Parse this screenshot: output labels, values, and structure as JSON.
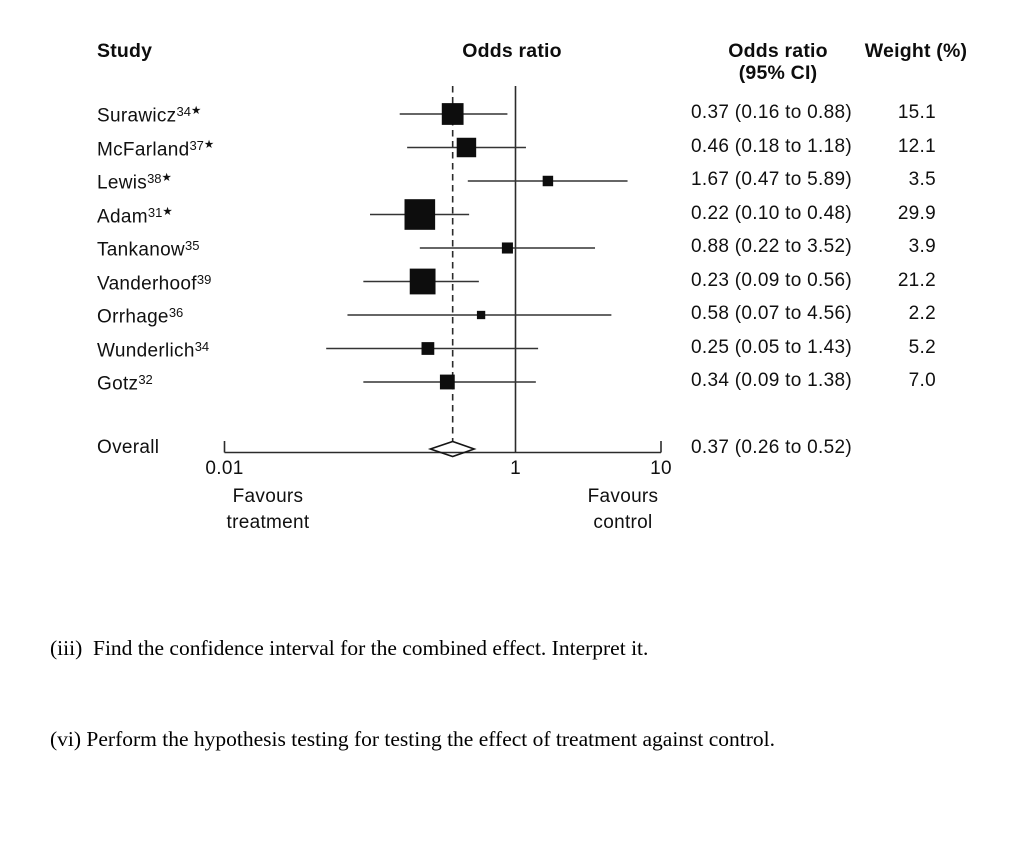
{
  "figure": {
    "headers": {
      "study": "Study",
      "odds_ratio": "Odds ratio",
      "odds_ratio_ci_line1": "Odds ratio",
      "odds_ratio_ci_line2": "(95% CI)",
      "weight": "Weight (%)"
    },
    "favours_left_line1": "Favours",
    "favours_left_line2": "treatment",
    "favours_right_line1": "Favours",
    "favours_right_line2": "control",
    "star_marker": "★"
  },
  "chart_data": {
    "type": "forest",
    "title": "Odds ratio",
    "x_axis": {
      "scale": "log",
      "min": 0.01,
      "max": 10,
      "tick_labels": [
        "0.01",
        "1",
        "10"
      ],
      "tick_values": [
        0.01,
        1,
        10
      ]
    },
    "reference_line": 1,
    "pooled_line": 0.37,
    "studies": [
      {
        "label": "Surawicz",
        "ref": "34",
        "star": true,
        "or": 0.37,
        "ci_low": 0.16,
        "ci_high": 0.88,
        "weight": 15.1,
        "or_ci_text": "0.37 (0.16 to 0.88)",
        "weight_text": "15.1"
      },
      {
        "label": "McFarland",
        "ref": "37",
        "star": true,
        "or": 0.46,
        "ci_low": 0.18,
        "ci_high": 1.18,
        "weight": 12.1,
        "or_ci_text": "0.46 (0.18 to 1.18)",
        "weight_text": "12.1"
      },
      {
        "label": "Lewis",
        "ref": "38",
        "star": true,
        "or": 1.67,
        "ci_low": 0.47,
        "ci_high": 5.89,
        "weight": 3.5,
        "or_ci_text": "1.67 (0.47 to 5.89)",
        "weight_text": "3.5"
      },
      {
        "label": "Adam",
        "ref": "31",
        "star": true,
        "or": 0.22,
        "ci_low": 0.1,
        "ci_high": 0.48,
        "weight": 29.9,
        "or_ci_text": "0.22 (0.10 to 0.48)",
        "weight_text": "29.9"
      },
      {
        "label": "Tankanow",
        "ref": "35",
        "star": false,
        "or": 0.88,
        "ci_low": 0.22,
        "ci_high": 3.52,
        "weight": 3.9,
        "or_ci_text": "0.88 (0.22 to 3.52)",
        "weight_text": "3.9"
      },
      {
        "label": "Vanderhoof",
        "ref": "39",
        "star": false,
        "or": 0.23,
        "ci_low": 0.09,
        "ci_high": 0.56,
        "weight": 21.2,
        "or_ci_text": "0.23 (0.09 to 0.56)",
        "weight_text": "21.2"
      },
      {
        "label": "Orrhage",
        "ref": "36",
        "star": false,
        "or": 0.58,
        "ci_low": 0.07,
        "ci_high": 4.56,
        "weight": 2.2,
        "or_ci_text": "0.58 (0.07 to 4.56)",
        "weight_text": "2.2"
      },
      {
        "label": "Wunderlich",
        "ref": "34",
        "star": false,
        "or": 0.25,
        "ci_low": 0.05,
        "ci_high": 1.43,
        "weight": 5.2,
        "or_ci_text": "0.25 (0.05 to 1.43)",
        "weight_text": "5.2"
      },
      {
        "label": "Gotz",
        "ref": "32",
        "star": false,
        "or": 0.34,
        "ci_low": 0.09,
        "ci_high": 1.38,
        "weight": 7.0,
        "or_ci_text": "0.34 (0.09 to 1.38)",
        "weight_text": "7.0"
      }
    ],
    "overall": {
      "label": "Overall",
      "or": 0.37,
      "ci_low": 0.26,
      "ci_high": 0.52,
      "or_ci_text": "0.37 (0.26 to 0.52)"
    },
    "legend_left": "Favours treatment",
    "legend_right": "Favours control"
  },
  "questions": [
    "(iii)  Find the confidence interval for the combined effect. Interpret it.",
    "(vi) Perform the hypothesis testing for testing the effect of treatment against control."
  ],
  "colors": {
    "ink": "#0d0d0d",
    "line": "#2b2b2b",
    "marker": "#0d0d0d"
  }
}
